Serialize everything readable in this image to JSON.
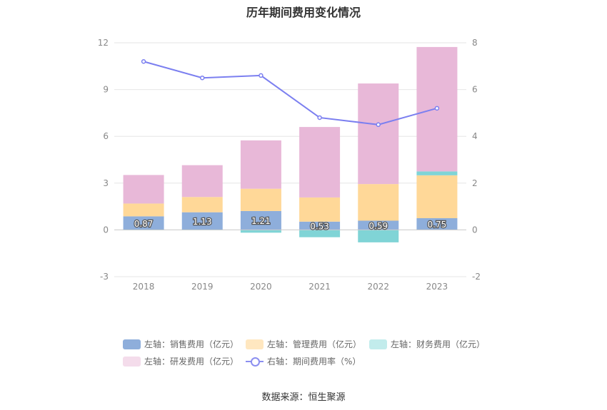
{
  "title": "历年期间费用变化情况",
  "source": "数据来源：恒生聚源",
  "colors": {
    "sales": "#8eaedb",
    "admin": "#ffd898",
    "finance": "#80d4d6",
    "rd": "#e8b8d8",
    "rate": "#7b7ff0"
  },
  "legend": [
    {
      "key": "sales",
      "label": "左轴：销售费用（亿元）",
      "color": "#8eaedb",
      "kind": "box"
    },
    {
      "key": "admin",
      "label": "左轴：管理费用（亿元）",
      "color": "#ffe7c0",
      "kind": "box"
    },
    {
      "key": "finance",
      "label": "左轴：财务费用（亿元）",
      "color": "#c2ecec",
      "kind": "box"
    },
    {
      "key": "rd",
      "label": "左轴：研发费用（亿元）",
      "color": "#f4dceb",
      "kind": "box"
    },
    {
      "key": "rate",
      "label": "右轴：期间费用率（%）",
      "color": "#8b8ff0",
      "kind": "line"
    }
  ],
  "chart_data": {
    "type": "bar",
    "stacked": true,
    "categories": [
      "2018",
      "2019",
      "2020",
      "2021",
      "2022",
      "2023"
    ],
    "series": [
      {
        "name": "左轴：销售费用（亿元）",
        "axis": "left",
        "values": [
          0.87,
          1.13,
          1.21,
          0.53,
          0.59,
          0.75
        ]
      },
      {
        "name": "左轴：管理费用（亿元）",
        "axis": "left",
        "values": [
          0.82,
          0.98,
          1.43,
          1.55,
          2.35,
          2.75
        ]
      },
      {
        "name": "左轴：财务费用（亿元）",
        "axis": "left",
        "values": [
          -0.02,
          -0.02,
          -0.18,
          -0.47,
          -0.8,
          0.25
        ]
      },
      {
        "name": "左轴：研发费用（亿元）",
        "axis": "left",
        "values": [
          1.83,
          2.04,
          3.1,
          4.52,
          6.45,
          7.98
        ]
      },
      {
        "name": "右轴：期间费用率（%）",
        "axis": "right",
        "type": "line",
        "values": [
          7.2,
          6.5,
          6.6,
          4.8,
          4.5,
          5.2
        ]
      }
    ],
    "data_labels": [
      "0.87",
      "1.13",
      "1.21",
      "0.53",
      "0.59",
      "0.75"
    ],
    "left_axis": {
      "min": -3,
      "max": 12,
      "ticks": [
        "-3",
        "0",
        "3",
        "6",
        "9",
        "12"
      ]
    },
    "right_axis": {
      "min": -2,
      "max": 8,
      "ticks": [
        "-2",
        "0",
        "2",
        "4",
        "6",
        "8"
      ]
    },
    "grid": true,
    "legend_position": "bottom"
  }
}
